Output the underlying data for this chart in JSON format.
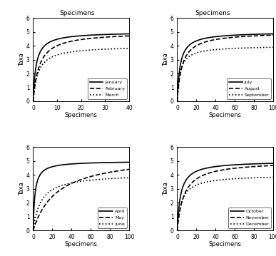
{
  "panels": [
    {
      "months": [
        "January",
        "February",
        "March"
      ],
      "linestyles": [
        "solid",
        "dashed",
        "dotted"
      ],
      "xlim": [
        0,
        40
      ],
      "ylim": [
        0,
        6
      ],
      "xticks": [
        0,
        10,
        20,
        30,
        40
      ],
      "yticks": [
        0,
        1,
        2,
        3,
        4,
        5,
        6
      ],
      "curves": [
        {
          "S": 5.0,
          "b": 1.2
        },
        {
          "S": 5.0,
          "b": 2.5
        },
        {
          "S": 4.0,
          "b": 2.0
        }
      ]
    },
    {
      "months": [
        "July",
        "August",
        "September"
      ],
      "linestyles": [
        "solid",
        "dashed",
        "dotted"
      ],
      "xlim": [
        0,
        100
      ],
      "ylim": [
        0,
        6
      ],
      "xticks": [
        0,
        20,
        40,
        60,
        80,
        100
      ],
      "yticks": [
        0,
        1,
        2,
        3,
        4,
        5,
        6
      ],
      "curves": [
        {
          "S": 5.0,
          "b": 3.0
        },
        {
          "S": 5.0,
          "b": 5.0
        },
        {
          "S": 4.0,
          "b": 3.0
        }
      ]
    },
    {
      "months": [
        "April",
        "May",
        "June"
      ],
      "linestyles": [
        "solid",
        "dashed",
        "dotted"
      ],
      "xlim": [
        0,
        100
      ],
      "ylim": [
        0,
        6
      ],
      "xticks": [
        0,
        20,
        40,
        60,
        80,
        100
      ],
      "yticks": [
        0,
        1,
        2,
        3,
        4,
        5,
        6
      ],
      "curves": [
        {
          "S": 5.0,
          "b": 1.8
        },
        {
          "S": 5.5,
          "b": 25.0
        },
        {
          "S": 4.1,
          "b": 8.0
        }
      ]
    },
    {
      "months": [
        "October",
        "November",
        "December"
      ],
      "linestyles": [
        "solid",
        "dashed",
        "dotted"
      ],
      "xlim": [
        0,
        100
      ],
      "ylim": [
        0,
        6
      ],
      "xticks": [
        0,
        20,
        40,
        60,
        80,
        100
      ],
      "yticks": [
        0,
        1,
        2,
        3,
        4,
        5,
        6
      ],
      "curves": [
        {
          "S": 5.0,
          "b": 3.5
        },
        {
          "S": 5.0,
          "b": 7.0
        },
        {
          "S": 4.0,
          "b": 4.5
        }
      ]
    }
  ],
  "top_xlabel": "Specimens",
  "xlabel": "Specimens",
  "ylabel": "Taxa"
}
